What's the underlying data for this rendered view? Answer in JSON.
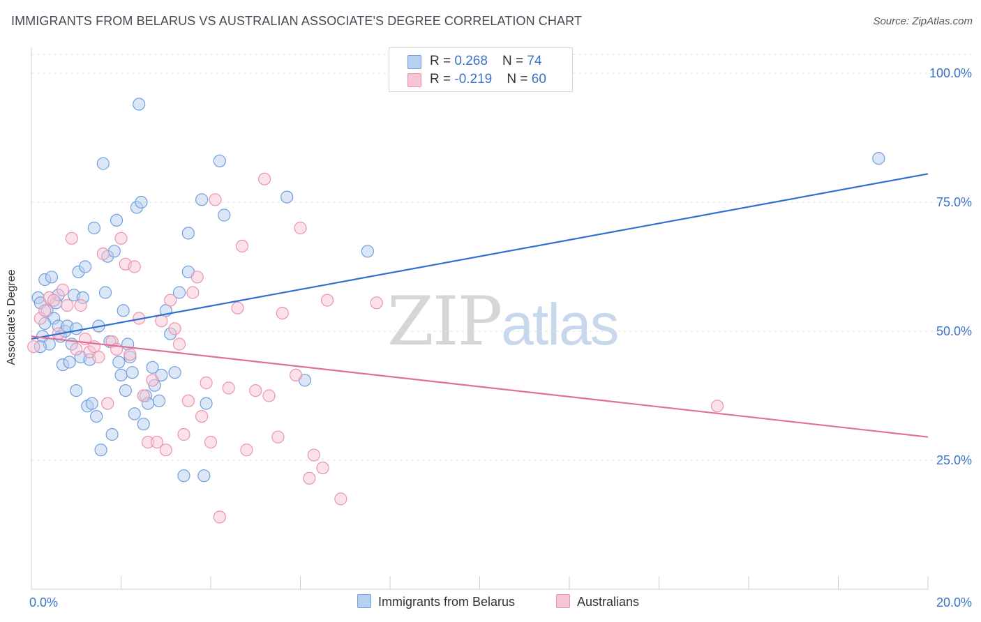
{
  "title": "IMMIGRANTS FROM BELARUS VS AUSTRALIAN ASSOCIATE'S DEGREE CORRELATION CHART",
  "source": "Source: ZipAtlas.com",
  "watermark": {
    "zip": "ZIP",
    "atlas": "atlas"
  },
  "colors": {
    "blue_fill": "#b8d0f0",
    "blue_stroke": "#6f9fdc",
    "blue_line": "#2f6fd0",
    "pink_fill": "#f7c6d5",
    "pink_stroke": "#eb93ae",
    "pink_line": "#e0709a",
    "tick_text": "#3a73c9",
    "grid": "#e0e0e0"
  },
  "legend_top": {
    "blue": {
      "r_label": "R = ",
      "r_value": "0.268",
      "n_label": "N = ",
      "n_value": "74"
    },
    "pink": {
      "r_label": "R = ",
      "r_value": "-0.219",
      "n_label": "N = ",
      "n_value": "60"
    }
  },
  "legend_bottom": {
    "blue": "Immigrants from Belarus",
    "pink": "Australians"
  },
  "chart_data": {
    "type": "scatter",
    "title": "IMMIGRANTS FROM BELARUS VS AUSTRALIAN ASSOCIATE'S DEGREE CORRELATION CHART",
    "xlabel": "",
    "ylabel": "Associate's Degree",
    "xlim": [
      0,
      20
    ],
    "ylim": [
      0,
      105
    ],
    "x_tick_labels": [
      "0.0%",
      "20.0%"
    ],
    "y_ticks": [
      25,
      50,
      75,
      100
    ],
    "y_tick_labels": [
      "25.0%",
      "50.0%",
      "75.0%",
      "100.0%"
    ],
    "grid": true,
    "series": [
      {
        "name": "Immigrants from Belarus",
        "color": "blue",
        "trend": {
          "x0": 0,
          "y0": 48.5,
          "x1": 20,
          "y1": 80.5
        },
        "points": [
          [
            0.15,
            56.5
          ],
          [
            0.2,
            55.5
          ],
          [
            0.25,
            49.0
          ],
          [
            0.3,
            60.0
          ],
          [
            0.35,
            54.0
          ],
          [
            0.4,
            47.5
          ],
          [
            0.45,
            60.5
          ],
          [
            0.5,
            52.5
          ],
          [
            0.55,
            55.5
          ],
          [
            0.6,
            51.0
          ],
          [
            0.65,
            49.0
          ],
          [
            0.7,
            43.5
          ],
          [
            0.75,
            50.0
          ],
          [
            0.8,
            51.0
          ],
          [
            0.85,
            44.0
          ],
          [
            0.9,
            47.5
          ],
          [
            0.95,
            57.0
          ],
          [
            1.0,
            38.5
          ],
          [
            1.05,
            61.5
          ],
          [
            1.1,
            45.0
          ],
          [
            1.15,
            56.5
          ],
          [
            1.2,
            62.5
          ],
          [
            1.25,
            35.5
          ],
          [
            1.3,
            44.5
          ],
          [
            1.35,
            36.0
          ],
          [
            1.4,
            70.0
          ],
          [
            1.45,
            33.5
          ],
          [
            1.5,
            51.0
          ],
          [
            1.55,
            27.0
          ],
          [
            1.6,
            82.5
          ],
          [
            1.65,
            57.5
          ],
          [
            1.7,
            64.5
          ],
          [
            1.75,
            48.0
          ],
          [
            1.8,
            30.0
          ],
          [
            1.85,
            65.5
          ],
          [
            1.9,
            71.5
          ],
          [
            1.95,
            44.0
          ],
          [
            2.0,
            41.5
          ],
          [
            2.05,
            54.0
          ],
          [
            2.1,
            38.5
          ],
          [
            2.15,
            47.5
          ],
          [
            2.2,
            45.0
          ],
          [
            2.25,
            42.0
          ],
          [
            2.3,
            34.0
          ],
          [
            2.35,
            74.0
          ],
          [
            2.4,
            94.0
          ],
          [
            2.45,
            75.0
          ],
          [
            2.5,
            32.0
          ],
          [
            2.55,
            37.5
          ],
          [
            2.6,
            36.0
          ],
          [
            2.7,
            43.0
          ],
          [
            2.75,
            39.5
          ],
          [
            2.85,
            36.5
          ],
          [
            2.9,
            41.5
          ],
          [
            3.0,
            54.0
          ],
          [
            3.1,
            49.5
          ],
          [
            3.2,
            42.0
          ],
          [
            3.3,
            57.5
          ],
          [
            3.4,
            22.0
          ],
          [
            3.5,
            61.5
          ],
          [
            3.5,
            69.0
          ],
          [
            3.8,
            75.5
          ],
          [
            3.85,
            22.0
          ],
          [
            3.9,
            36.0
          ],
          [
            4.2,
            83.0
          ],
          [
            4.3,
            72.5
          ],
          [
            5.7,
            76.0
          ],
          [
            6.1,
            40.5
          ],
          [
            7.5,
            65.5
          ],
          [
            18.9,
            83.5
          ],
          [
            0.3,
            51.5
          ],
          [
            0.6,
            57.0
          ],
          [
            1.0,
            50.5
          ],
          [
            0.2,
            47.0
          ]
        ]
      },
      {
        "name": "Australians",
        "color": "pink",
        "trend": {
          "x0": 0,
          "y0": 49.0,
          "x1": 20,
          "y1": 29.5
        },
        "points": [
          [
            0.05,
            47.0
          ],
          [
            0.2,
            52.5
          ],
          [
            0.3,
            54.0
          ],
          [
            0.4,
            56.5
          ],
          [
            0.5,
            56.0
          ],
          [
            0.6,
            49.5
          ],
          [
            0.7,
            58.0
          ],
          [
            0.8,
            55.0
          ],
          [
            0.9,
            68.0
          ],
          [
            1.0,
            46.5
          ],
          [
            1.1,
            55.0
          ],
          [
            1.2,
            48.5
          ],
          [
            1.3,
            46.0
          ],
          [
            1.4,
            47.0
          ],
          [
            1.5,
            45.0
          ],
          [
            1.6,
            65.0
          ],
          [
            1.7,
            36.0
          ],
          [
            1.8,
            48.0
          ],
          [
            1.9,
            46.5
          ],
          [
            2.0,
            68.0
          ],
          [
            2.1,
            63.0
          ],
          [
            2.2,
            45.5
          ],
          [
            2.3,
            62.5
          ],
          [
            2.4,
            52.5
          ],
          [
            2.5,
            37.5
          ],
          [
            2.6,
            28.5
          ],
          [
            2.7,
            40.5
          ],
          [
            2.8,
            28.5
          ],
          [
            2.9,
            52.0
          ],
          [
            3.0,
            27.0
          ],
          [
            3.1,
            56.0
          ],
          [
            3.2,
            50.5
          ],
          [
            3.3,
            47.5
          ],
          [
            3.4,
            30.0
          ],
          [
            3.5,
            36.5
          ],
          [
            3.6,
            57.5
          ],
          [
            3.7,
            60.5
          ],
          [
            3.8,
            33.5
          ],
          [
            3.9,
            40.0
          ],
          [
            4.0,
            28.5
          ],
          [
            4.1,
            75.5
          ],
          [
            4.2,
            14.0
          ],
          [
            4.4,
            39.0
          ],
          [
            4.6,
            54.5
          ],
          [
            4.7,
            66.5
          ],
          [
            4.8,
            27.0
          ],
          [
            5.0,
            38.5
          ],
          [
            5.2,
            79.5
          ],
          [
            5.3,
            37.5
          ],
          [
            5.5,
            29.5
          ],
          [
            5.6,
            53.5
          ],
          [
            5.9,
            41.5
          ],
          [
            6.0,
            70.0
          ],
          [
            6.2,
            21.5
          ],
          [
            6.3,
            26.0
          ],
          [
            6.5,
            23.5
          ],
          [
            6.6,
            56.0
          ],
          [
            6.9,
            17.5
          ],
          [
            7.7,
            55.5
          ],
          [
            15.3,
            35.5
          ]
        ]
      }
    ]
  }
}
